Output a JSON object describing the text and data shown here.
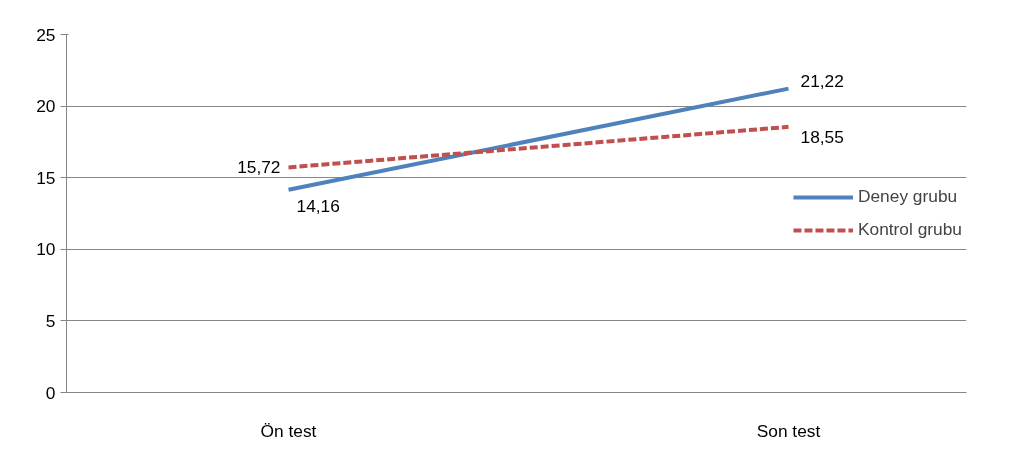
{
  "chart_data": {
    "type": "line",
    "categories": [
      "Ön test",
      "Son test"
    ],
    "series": [
      {
        "name": "Deney grubu",
        "color": "#4f81bd",
        "values": [
          14.16,
          21.22
        ],
        "value_labels": [
          "14,16",
          "21,22"
        ],
        "line_style": "solid"
      },
      {
        "name": "Kontrol grubu",
        "color": "#c0504d",
        "values": [
          15.72,
          18.55
        ],
        "value_labels": [
          "15,72",
          "18,55"
        ],
        "line_style": "dashed"
      }
    ],
    "ylim": [
      0,
      25
    ],
    "yticks": [
      0,
      5,
      10,
      15,
      20,
      25
    ],
    "grid": "y",
    "legend": "right",
    "marker": "none"
  }
}
